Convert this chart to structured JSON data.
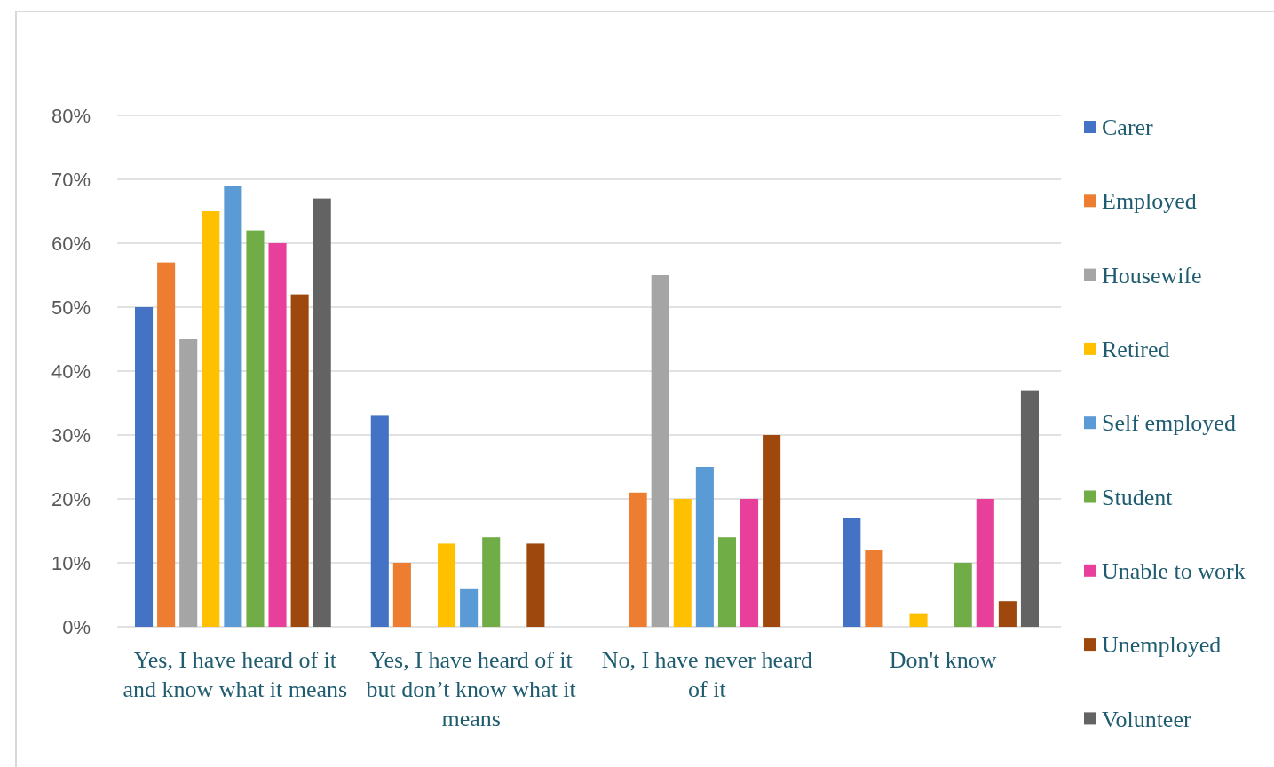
{
  "chart_data": {
    "type": "bar",
    "categories": [
      "Yes, I have heard of it and know what it means",
      "Yes, I have heard of it but don’t know what it means",
      "No, I have never heard of it",
      "Don't know"
    ],
    "series": [
      {
        "name": "Carer",
        "color": "#4472c4",
        "values": [
          50,
          33,
          0,
          17
        ]
      },
      {
        "name": "Employed",
        "color": "#ed7d31",
        "values": [
          57,
          10,
          21,
          12
        ]
      },
      {
        "name": "Housewife",
        "color": "#a5a5a5",
        "values": [
          45,
          0,
          55,
          0
        ]
      },
      {
        "name": "Retired",
        "color": "#ffc000",
        "values": [
          65,
          13,
          20,
          2
        ]
      },
      {
        "name": "Self employed",
        "color": "#5b9bd5",
        "values": [
          69,
          6,
          25,
          0
        ]
      },
      {
        "name": "Student",
        "color": "#70ad47",
        "values": [
          62,
          14,
          14,
          10
        ]
      },
      {
        "name": "Unable to work",
        "color": "#e8409a",
        "values": [
          60,
          0,
          20,
          20
        ]
      },
      {
        "name": "Unemployed",
        "color": "#9e480e",
        "values": [
          52,
          13,
          30,
          4
        ]
      },
      {
        "name": "Volunteer",
        "color": "#636363",
        "values": [
          67,
          0,
          0,
          37
        ]
      }
    ],
    "ylim": [
      0,
      80
    ],
    "yticks": [
      {
        "value": 0,
        "label": "0%"
      },
      {
        "value": 10,
        "label": "10%"
      },
      {
        "value": 20,
        "label": "20%"
      },
      {
        "value": 30,
        "label": "30%"
      },
      {
        "value": 40,
        "label": "40%"
      },
      {
        "value": 50,
        "label": "50%"
      },
      {
        "value": 60,
        "label": "60%"
      },
      {
        "value": 70,
        "label": "70%"
      },
      {
        "value": 80,
        "label": "80%"
      }
    ],
    "grid": "y",
    "legend": "right"
  }
}
